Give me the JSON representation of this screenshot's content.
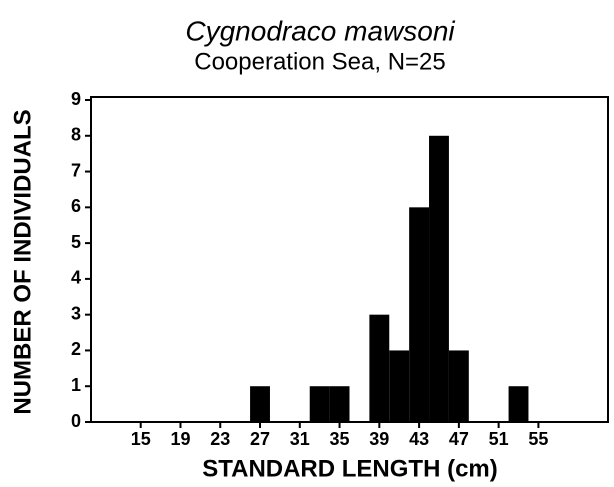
{
  "chart_data": {
    "type": "histogram",
    "title": "Cygnodraco mawsoni",
    "subtitle": "Cooperation Sea, N=25",
    "x_label": "STANDARD LENGTH (cm)",
    "y_label": "NUMBER OF INDIVIDUALS",
    "bins": [
      26,
      28,
      30,
      32,
      34,
      36,
      38,
      40,
      42,
      44,
      46,
      48,
      50,
      52,
      54
    ],
    "counts": [
      1,
      0,
      0,
      1,
      1,
      0,
      3,
      2,
      6,
      8,
      2,
      0,
      0,
      1
    ],
    "color": "#000000",
    "xlim": [
      10,
      62
    ],
    "xticks": [
      15,
      19,
      23,
      27,
      31,
      35,
      39,
      43,
      47,
      51,
      55
    ],
    "ylim": [
      0,
      9
    ],
    "yticks": [
      0,
      1,
      2,
      3,
      4,
      5,
      6,
      7,
      8,
      9
    ]
  }
}
